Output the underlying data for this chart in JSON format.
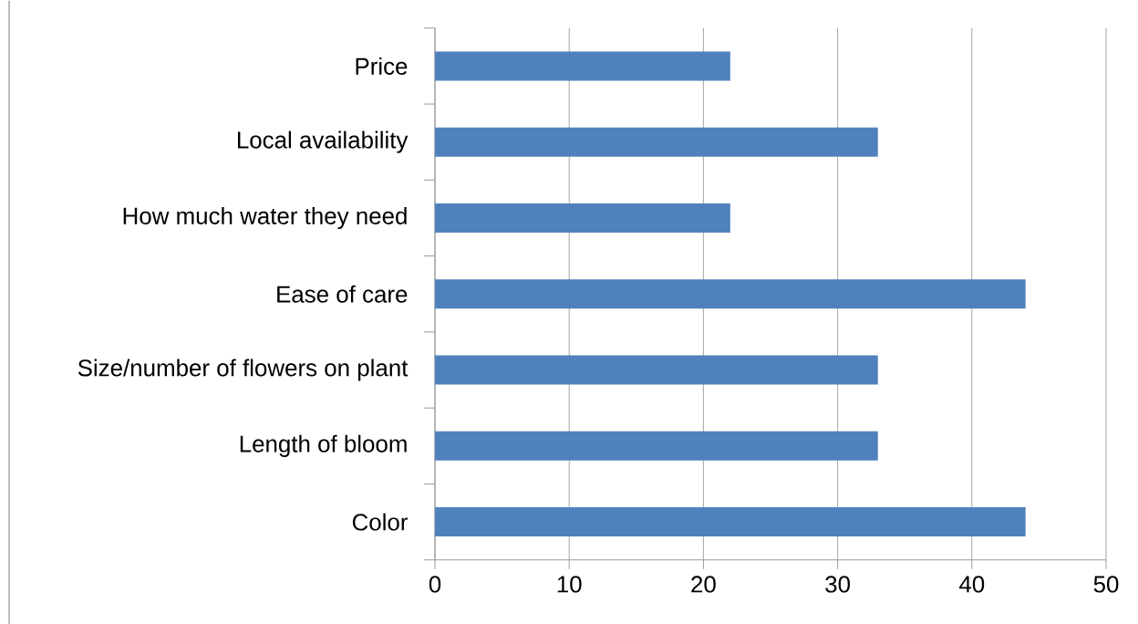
{
  "chart_data": {
    "type": "bar",
    "orientation": "horizontal",
    "categories": [
      "Price",
      "Local availability",
      "How much water they need",
      "Ease of care",
      "Size/number of flowers on plant",
      "Length of bloom",
      "Color"
    ],
    "values": [
      22,
      33,
      22,
      44,
      33,
      33,
      44
    ],
    "color": "#4f81bd",
    "xlim": [
      0,
      50
    ],
    "xticks": [
      0,
      10,
      20,
      30,
      40,
      50
    ],
    "grid": "x"
  }
}
